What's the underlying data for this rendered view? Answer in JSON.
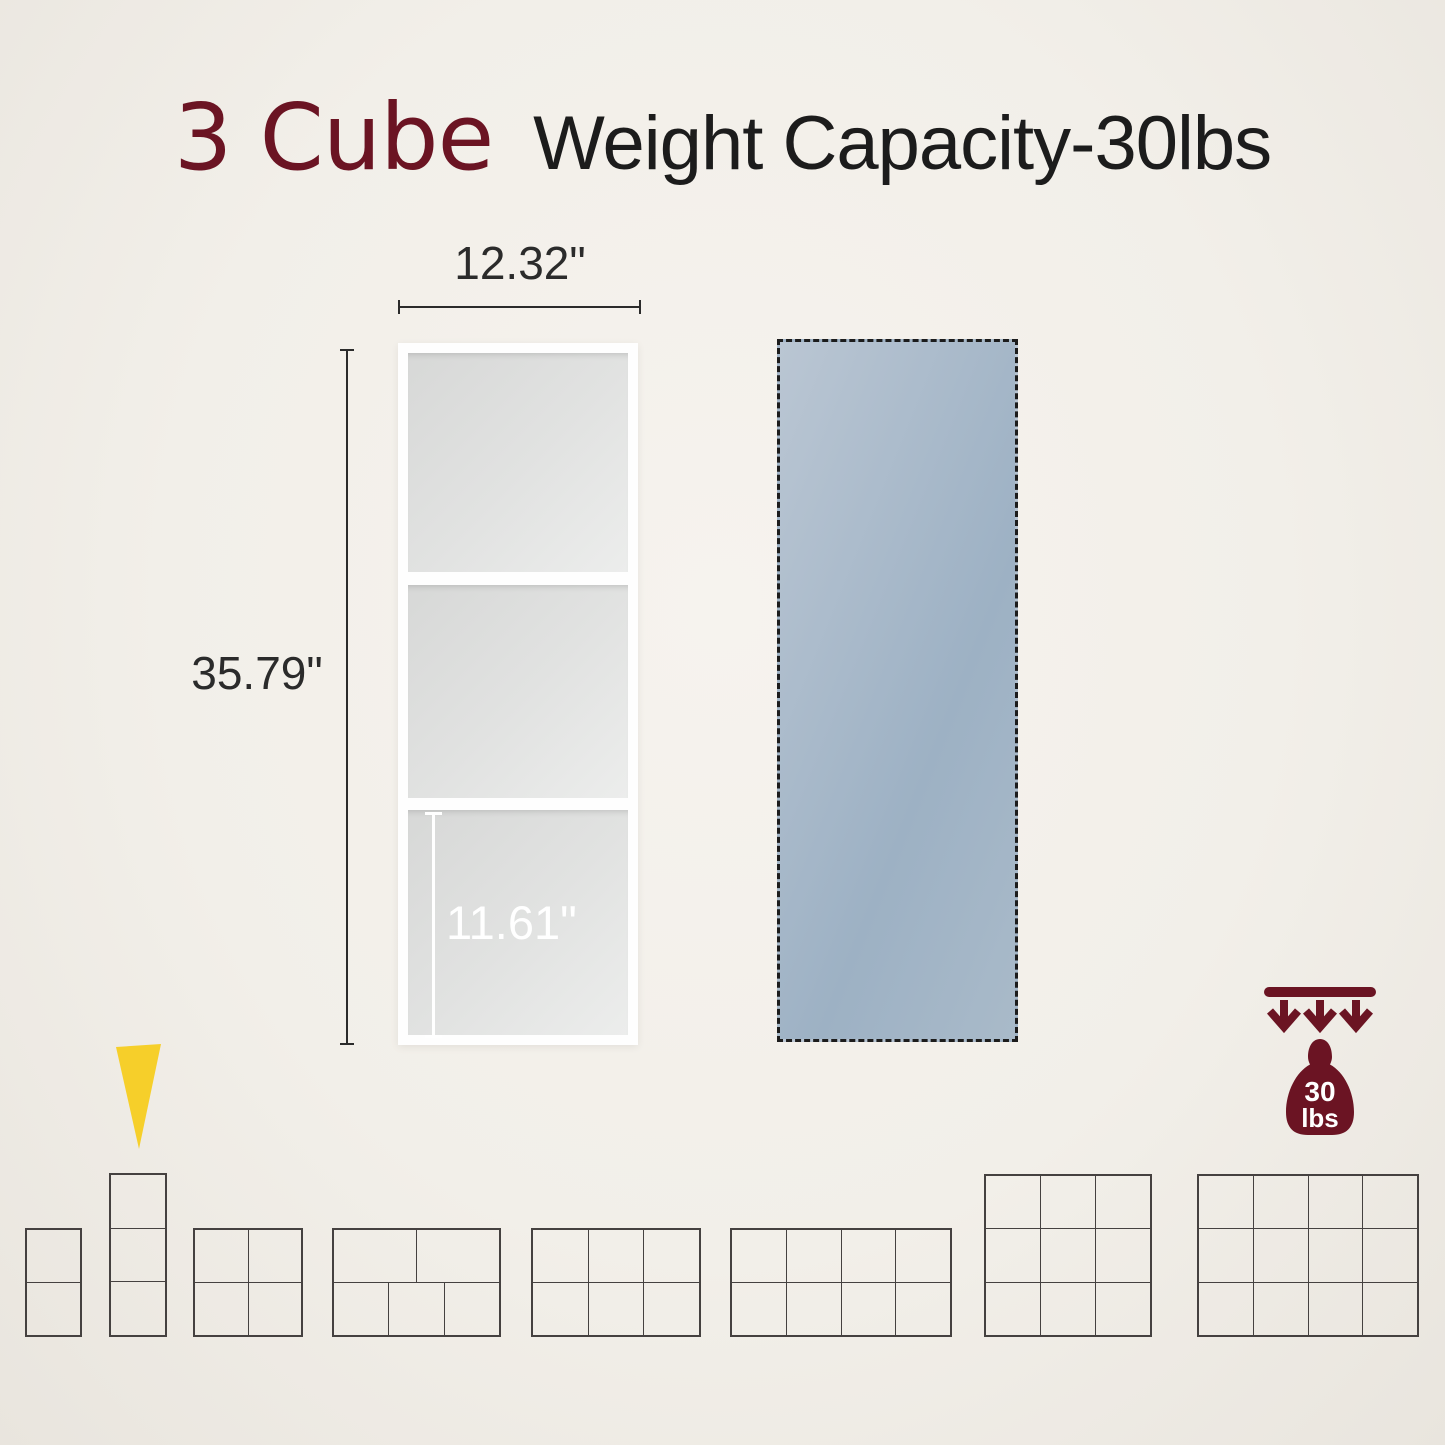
{
  "title": {
    "product": "3 Cube",
    "subtitle": "Weight Capacity-30lbs"
  },
  "shelf": {
    "width_label": "12.32\"",
    "height_label": "35.79\"",
    "cube_label": "11.61\"",
    "cube_count": 3
  },
  "weight_badge": {
    "value": "30",
    "unit": "lbs"
  },
  "colors": {
    "accent_maroon": "#6b1423",
    "title_dark": "#1c1c1c",
    "highlight_yellow": "#f6cf2a",
    "grid_line": "#454140",
    "panel_blue_start": "#bac6d3",
    "panel_blue_end": "#a9bac9"
  },
  "configs": {
    "items": [
      {
        "name": "2-cube-vertical",
        "cubes": 2,
        "row_cells": [
          1,
          1
        ],
        "highlighted": false
      },
      {
        "name": "3-cube-vertical",
        "cubes": 3,
        "row_cells": [
          1,
          1,
          1
        ],
        "highlighted": true
      },
      {
        "name": "4-cube-2x2",
        "cubes": 4,
        "row_cells": [
          2,
          2
        ],
        "highlighted": false
      },
      {
        "name": "5-cube-2-plus-3",
        "cubes": 5,
        "row_cells": [
          2,
          3
        ],
        "highlighted": false
      },
      {
        "name": "6-cube-3x2",
        "cubes": 6,
        "row_cells": [
          3,
          3
        ],
        "highlighted": false
      },
      {
        "name": "8-cube-4x2",
        "cubes": 8,
        "row_cells": [
          4,
          4
        ],
        "highlighted": false
      },
      {
        "name": "9-cube-3x3",
        "cubes": 9,
        "row_cells": [
          3,
          3,
          3
        ],
        "highlighted": false
      },
      {
        "name": "12-cube-4x3",
        "cubes": 12,
        "row_cells": [
          4,
          4,
          4
        ],
        "highlighted": false
      }
    ]
  }
}
